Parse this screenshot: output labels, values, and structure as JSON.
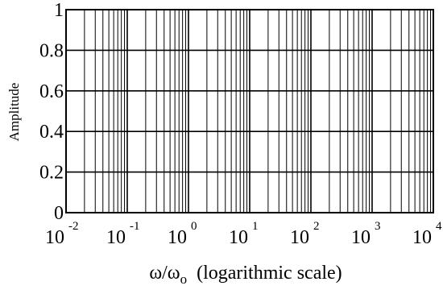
{
  "chart_data": {
    "type": "line",
    "series": [],
    "xlabel": {
      "main": "ω/ω",
      "sub": "o",
      "suffix": "  (logarithmic scale)"
    },
    "ylabel": "Amplitude",
    "x_scale": "log",
    "xlim": [
      0.01,
      10000
    ],
    "ylim": [
      0,
      1
    ],
    "x_ticks": [
      {
        "base": "10",
        "exp": "-2"
      },
      {
        "base": "10",
        "exp": "-1"
      },
      {
        "base": "10",
        "exp": "0"
      },
      {
        "base": "10",
        "exp": "1"
      },
      {
        "base": "10",
        "exp": "2"
      },
      {
        "base": "10",
        "exp": "3"
      },
      {
        "base": "10",
        "exp": "4"
      }
    ],
    "y_ticks": [
      "0",
      "0.2",
      "0.4",
      "0.6",
      "0.8",
      "1"
    ],
    "grid": true
  }
}
